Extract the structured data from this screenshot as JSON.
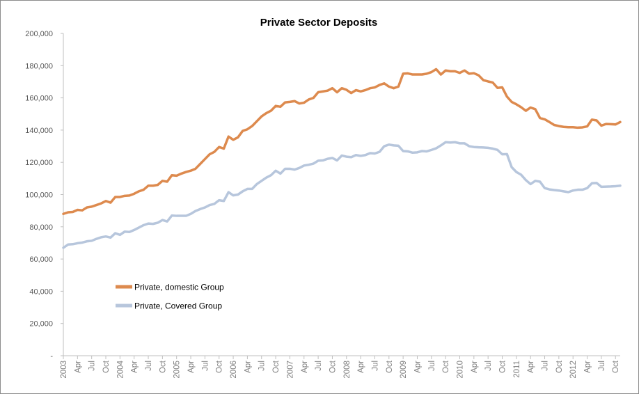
{
  "chart_data": {
    "type": "line",
    "title": "Private Sector Deposits",
    "xlabel": "",
    "ylabel": "",
    "ylim": [
      0,
      200000
    ],
    "y_ticks": [
      {
        "value": 0,
        "label": "-"
      },
      {
        "value": 20000,
        "label": "20,000"
      },
      {
        "value": 40000,
        "label": "40,000"
      },
      {
        "value": 60000,
        "label": "60,000"
      },
      {
        "value": 80000,
        "label": "80,000"
      },
      {
        "value": 100000,
        "label": "100,000"
      },
      {
        "value": 120000,
        "label": "120,000"
      },
      {
        "value": 140000,
        "label": "140,000"
      },
      {
        "value": 160000,
        "label": "160,000"
      },
      {
        "value": 180000,
        "label": "180,000"
      },
      {
        "value": 200000,
        "label": "200,000"
      }
    ],
    "x_tick_labels": [
      "2003",
      "Apr",
      "Jul",
      "Oct",
      "2004",
      "Apr",
      "Jul",
      "Oct",
      "2005",
      "Apr",
      "Jul",
      "Oct",
      "2006",
      "Apr",
      "Jul",
      "Oct",
      "2007",
      "Apr",
      "Jul",
      "Oct",
      "2008",
      "Apr",
      "Jul",
      "Oct",
      "2009",
      "Apr",
      "Jul",
      "Oct",
      "2010",
      "Apr",
      "Jul",
      "Oct",
      "2011",
      "Apr",
      "Jul",
      "Oct",
      "2012",
      "Apr",
      "Jul",
      "Oct"
    ],
    "legend_position": "lower-left",
    "series": [
      {
        "name": "Private, domestic Group",
        "color": "#dd8a4e",
        "values": [
          88000,
          89000,
          89200,
          90500,
          90200,
          92000,
          92500,
          93500,
          94500,
          96000,
          95000,
          98500,
          98500,
          99200,
          99400,
          100500,
          102000,
          103000,
          105500,
          105500,
          106000,
          108500,
          108000,
          112000,
          111700,
          113000,
          114000,
          114800,
          116000,
          119000,
          122000,
          125000,
          126500,
          129500,
          128500,
          136000,
          134000,
          135500,
          139500,
          140500,
          142500,
          145500,
          148500,
          150500,
          152000,
          155000,
          154500,
          157200,
          157500,
          158000,
          156500,
          157000,
          159000,
          160000,
          163500,
          164000,
          164500,
          166000,
          163500,
          166000,
          165000,
          163000,
          164800,
          164000,
          164800,
          166000,
          166500,
          168000,
          169000,
          167000,
          166000,
          167000,
          175000,
          175200,
          174500,
          174500,
          174500,
          175000,
          176000,
          177800,
          174500,
          177000,
          176500,
          176500,
          175500,
          177000,
          175000,
          175300,
          174000,
          171000,
          170200,
          169500,
          166200,
          166500,
          160800,
          157500,
          156000,
          154200,
          152000,
          154000,
          153000,
          147500,
          146700,
          145000,
          143200,
          142500,
          142000,
          141800,
          141800,
          141500,
          141700,
          142300,
          146500,
          146000,
          142800,
          143800,
          143700,
          143500,
          145000
        ]
      },
      {
        "name": "Private, Covered Group",
        "color": "#b7c6dc",
        "values": [
          67000,
          69000,
          69200,
          69800,
          70200,
          71000,
          71300,
          72500,
          73500,
          74000,
          73300,
          76000,
          75000,
          77000,
          76800,
          78000,
          79500,
          81000,
          82000,
          81800,
          82500,
          84200,
          83300,
          87000,
          86800,
          86800,
          86800,
          88000,
          89800,
          91000,
          92000,
          93500,
          94200,
          96500,
          96000,
          101500,
          99500,
          100000,
          102000,
          103500,
          103500,
          106500,
          108500,
          110500,
          112000,
          114800,
          113000,
          116000,
          116000,
          115500,
          116500,
          118000,
          118500,
          119200,
          121000,
          121200,
          122200,
          122700,
          121200,
          124200,
          123500,
          123200,
          124500,
          124000,
          124500,
          125700,
          125500,
          126500,
          130000,
          131000,
          130500,
          130300,
          127000,
          126800,
          126000,
          126200,
          127000,
          126800,
          127700,
          128700,
          130500,
          132500,
          132300,
          132500,
          131800,
          131800,
          130000,
          129500,
          129300,
          129200,
          129000,
          128500,
          127700,
          125000,
          125100,
          117000,
          114000,
          112300,
          109000,
          106500,
          108500,
          108000,
          104000,
          103200,
          102800,
          102500,
          102000,
          101500,
          102500,
          103000,
          103000,
          104000,
          107000,
          107200,
          104800,
          104900,
          105000,
          105200,
          105500
        ]
      }
    ]
  }
}
